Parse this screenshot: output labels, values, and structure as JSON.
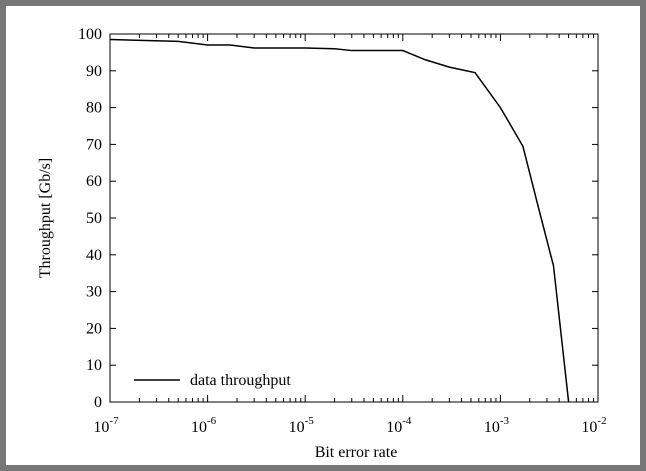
{
  "chart_data": {
    "type": "line",
    "title": "",
    "xlabel": "Bit error rate",
    "ylabel": "Throughput [Gb/s]",
    "xscale": "log",
    "xlim": [
      1e-07,
      0.01
    ],
    "ylim": [
      0,
      100
    ],
    "x_ticks": [
      {
        "base": "10",
        "exp": "-7",
        "value": 1e-07
      },
      {
        "base": "10",
        "exp": "-6",
        "value": 1e-06
      },
      {
        "base": "10",
        "exp": "-5",
        "value": 1e-05
      },
      {
        "base": "10",
        "exp": "-4",
        "value": 0.0001
      },
      {
        "base": "10",
        "exp": "-3",
        "value": 0.001
      },
      {
        "base": "10",
        "exp": "-2",
        "value": 0.01
      }
    ],
    "y_ticks": [
      "0",
      "10",
      "20",
      "30",
      "40",
      "50",
      "60",
      "70",
      "80",
      "90",
      "100"
    ],
    "grid": false,
    "legend_position": "bottom-left",
    "series": [
      {
        "name": "data throughput",
        "color": "#000000",
        "points": [
          {
            "x": 1e-07,
            "y": 98.5
          },
          {
            "x": 5e-07,
            "y": 98.0
          },
          {
            "x": 1e-06,
            "y": 97.0
          },
          {
            "x": 1.7e-06,
            "y": 97.0
          },
          {
            "x": 3e-06,
            "y": 96.2
          },
          {
            "x": 1e-05,
            "y": 96.2
          },
          {
            "x": 2e-05,
            "y": 96.0
          },
          {
            "x": 3e-05,
            "y": 95.5
          },
          {
            "x": 0.0001,
            "y": 95.5
          },
          {
            "x": 0.00017,
            "y": 93.0
          },
          {
            "x": 0.0003,
            "y": 91.0
          },
          {
            "x": 0.00055,
            "y": 89.5
          },
          {
            "x": 0.001,
            "y": 80.0
          },
          {
            "x": 0.0017,
            "y": 69.5
          },
          {
            "x": 0.0025,
            "y": 52.0
          },
          {
            "x": 0.0035,
            "y": 37.0
          },
          {
            "x": 0.005,
            "y": 0.0
          }
        ]
      }
    ]
  }
}
